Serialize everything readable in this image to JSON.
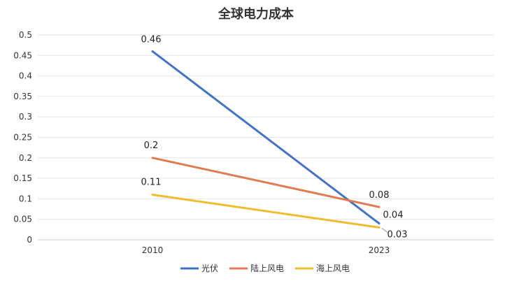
{
  "chart_data": {
    "type": "line",
    "title": "全球电力成本",
    "xlabel": "",
    "ylabel": "",
    "categories": [
      "2010",
      "2023"
    ],
    "ylim": [
      0,
      0.5
    ],
    "yticks": [
      "0",
      "0.05",
      "0.1",
      "0.15",
      "0.2",
      "0.25",
      "0.3",
      "0.35",
      "0.4",
      "0.45",
      "0.5"
    ],
    "grid": true,
    "legend_position": "bottom",
    "series": [
      {
        "name": "光伏",
        "color": "#4472C4",
        "values": [
          0.46,
          0.04
        ],
        "labels": [
          "0.46",
          "0.04"
        ]
      },
      {
        "name": "陆上风电",
        "color": "#E07B54",
        "values": [
          0.2,
          0.08
        ],
        "labels": [
          "0.2",
          "0.08"
        ]
      },
      {
        "name": "海上风电",
        "color": "#EDBD2E",
        "values": [
          0.11,
          0.03
        ],
        "labels": [
          "0.11",
          "0.03"
        ]
      }
    ]
  }
}
